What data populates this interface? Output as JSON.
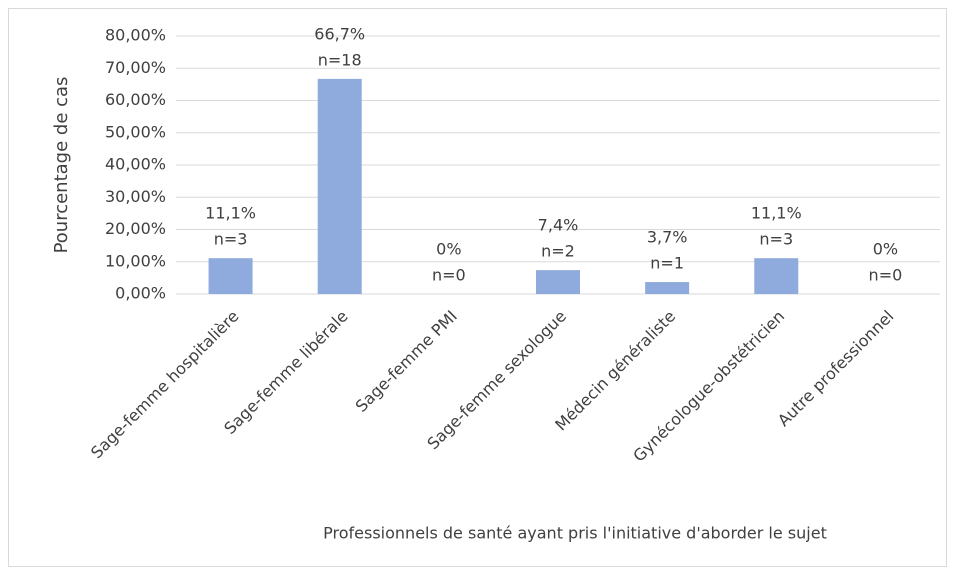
{
  "chart_data": {
    "type": "bar",
    "x_label": "Professionnels de santé ayant pris l'initiative d'aborder le sujet",
    "y_label": "Pourcentage de cas",
    "categories": [
      "Sage-femme hospitalière",
      "Sage-femme libérale",
      "Sage-femme PMI",
      "Sage-femme sexologue",
      "Médecin généraliste",
      "Gynécologue-obstétricien",
      "Autre professionnel"
    ],
    "values": [
      11.1,
      66.7,
      0,
      7.4,
      3.7,
      11.1,
      0
    ],
    "value_labels": [
      "11,1%",
      "66,7%",
      "0%",
      "7,4%",
      "3,7%",
      "11,1%",
      "0%"
    ],
    "count_labels": [
      "n=3",
      "n=18",
      "n=0",
      "n=2",
      "n=1",
      "n=3",
      "n=0"
    ],
    "color": "#8faadc",
    "ylim": [
      0,
      80
    ],
    "yticks": [
      {
        "value": 0,
        "label": "0,00%"
      },
      {
        "value": 10,
        "label": "10,00%"
      },
      {
        "value": 20,
        "label": "20,00%"
      },
      {
        "value": 30,
        "label": "30,00%"
      },
      {
        "value": 40,
        "label": "40,00%"
      },
      {
        "value": 50,
        "label": "50,00%"
      },
      {
        "value": 60,
        "label": "60,00%"
      },
      {
        "value": 70,
        "label": "70,00%"
      },
      {
        "value": 80,
        "label": "80,00%"
      }
    ],
    "grid": true
  }
}
